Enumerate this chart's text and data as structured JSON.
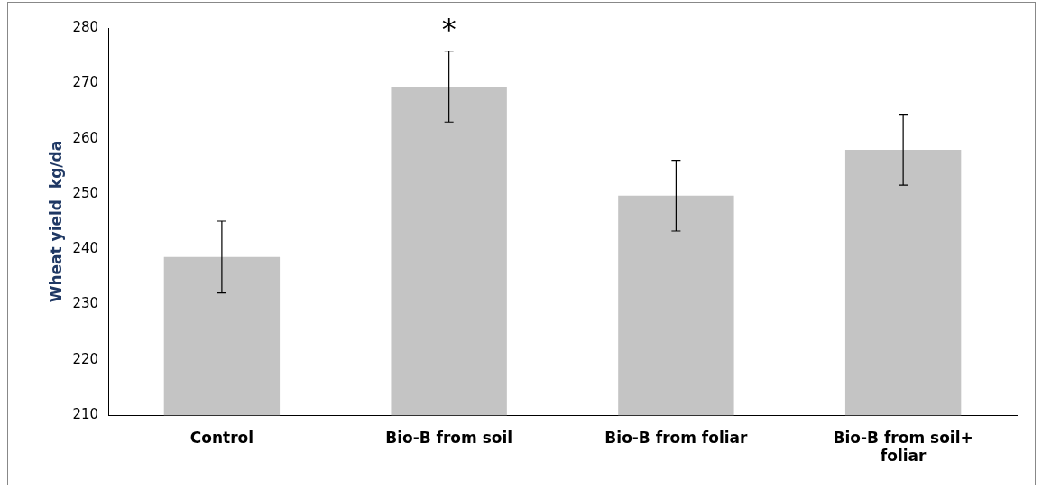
{
  "chart_data": {
    "type": "bar",
    "ylabel": "Wheat yield  kg/da",
    "categories": [
      "Control",
      "Bio-B from soil",
      "Bio-B from foliar",
      "Bio-B from soil+ foliar"
    ],
    "values": [
      238.6,
      269.4,
      249.7,
      258
    ],
    "errors": [
      6.5,
      6.4,
      6.4,
      6.4
    ],
    "color": "#c4c4c4",
    "ylim": [
      210,
      280
    ],
    "yticks": [
      210,
      220,
      230,
      240,
      250,
      260,
      270,
      280
    ],
    "grid": false,
    "legend": false,
    "annotations": [
      "*"
    ]
  }
}
